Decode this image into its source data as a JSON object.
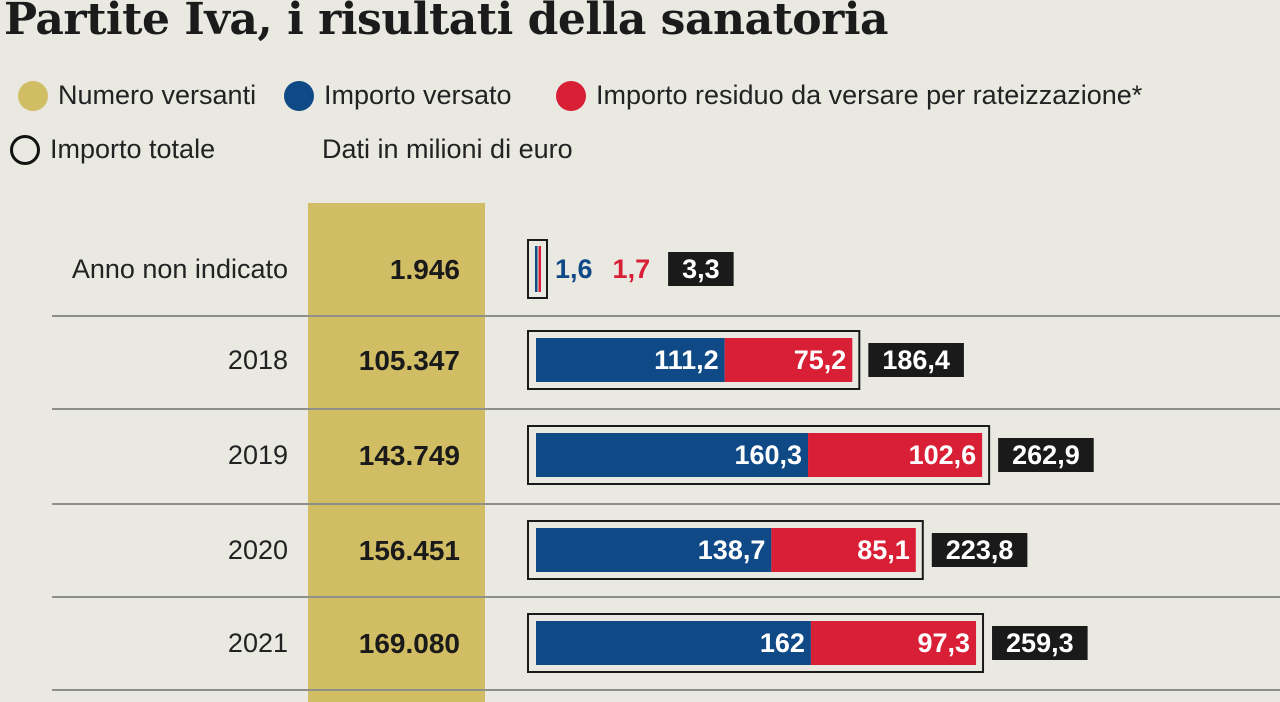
{
  "title": "Partite Iva, i risultati della sanatoria",
  "legend": {
    "numero_versanti": "Numero versanti",
    "importo_versato": "Importo versato",
    "importo_residuo": "Importo residuo da versare per rateizzazione*",
    "importo_totale": "Importo totale"
  },
  "note": "Dati in milioni di euro",
  "colors": {
    "background": "#e9e9e2",
    "versanti": "#d1bd64",
    "versato": "#0f4a86",
    "residuo": "#d91f36",
    "totale": "#1a1a1a"
  },
  "chart_data": {
    "type": "bar",
    "orientation": "horizontal",
    "stacked": true,
    "title": "Partite Iva, i risultati della sanatoria",
    "unit": "milioni di euro",
    "categories": [
      "Anno non indicato",
      "2018",
      "2019",
      "2020",
      "2021"
    ],
    "versanti": [
      "1.946",
      "105.347",
      "143.749",
      "156.451",
      "169.080"
    ],
    "series": [
      {
        "name": "Importo versato",
        "values": [
          1.6,
          111.2,
          160.3,
          138.7,
          162
        ],
        "labels": [
          "1,6",
          "111,2",
          "160,3",
          "138,7",
          "162"
        ]
      },
      {
        "name": "Importo residuo da versare per rateizzazione*",
        "values": [
          1.7,
          75.2,
          102.6,
          85.1,
          97.3
        ],
        "labels": [
          "1,7",
          "75,2",
          "102,6",
          "85,1",
          "97,3"
        ]
      }
    ],
    "totals": [
      3.3,
      186.4,
      262.9,
      223.8,
      259.3
    ],
    "total_labels": [
      "3,3",
      "186,4",
      "262,9",
      "223,8",
      "259,3"
    ]
  }
}
